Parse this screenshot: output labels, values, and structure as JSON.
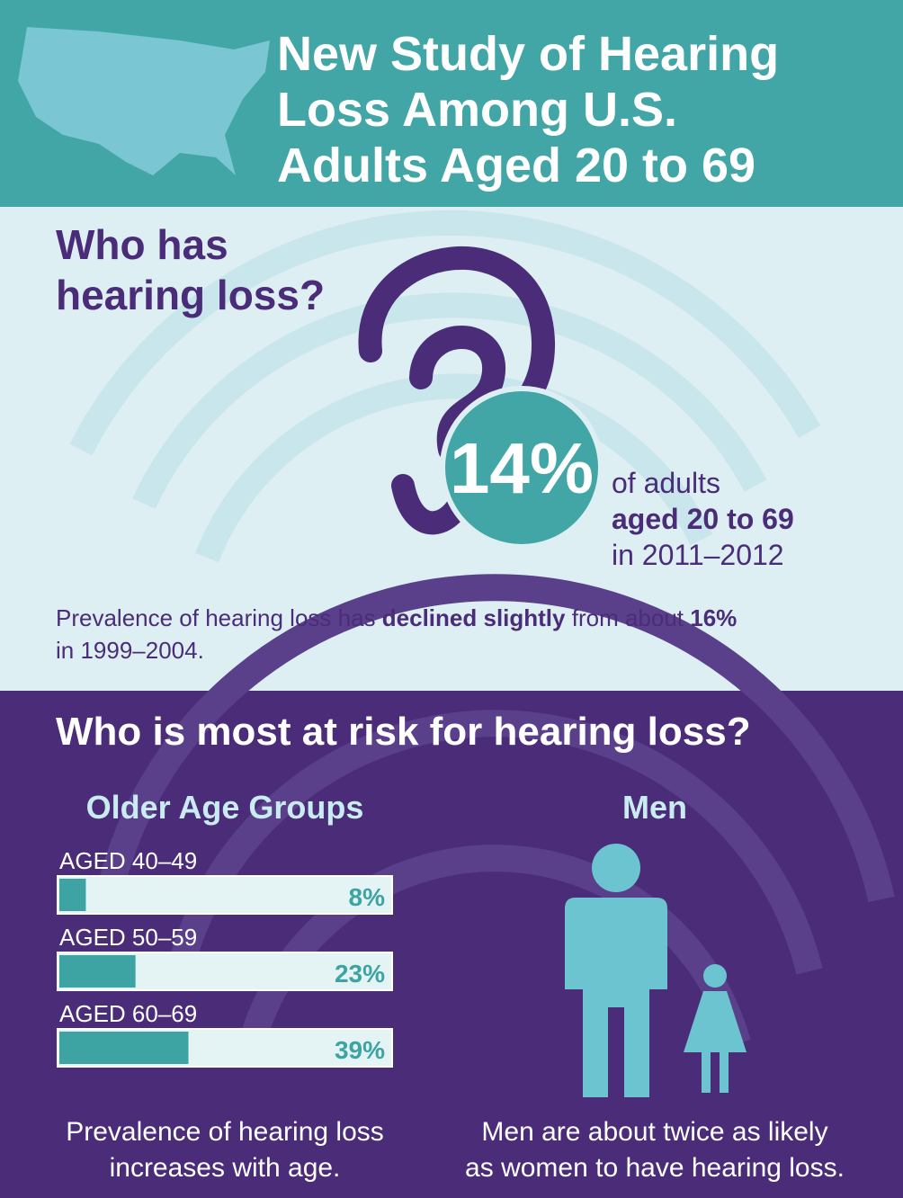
{
  "header": {
    "title_lines": [
      "New Study of Hearing",
      "Loss Among U.S.",
      "Adults Aged 20 to 69"
    ]
  },
  "who_has": {
    "heading_lines": [
      "Who has",
      "hearing loss?"
    ],
    "stat": "14%",
    "stat_caption": [
      "of adults",
      "aged 20 to 69",
      "in 2011–2012"
    ],
    "note": [
      "Prevalence of hearing loss has ",
      "declined slightly",
      " from about ",
      "16%",
      "in 1999–2004."
    ]
  },
  "risk": {
    "heading": "Who is most at risk for hearing loss?",
    "men_heading": "Men",
    "age_caption": [
      "Prevalence of hearing loss",
      "increases with age."
    ],
    "men_caption": [
      "Men are about twice as likely",
      "as women to have hearing loss."
    ]
  },
  "chart_data": {
    "type": "bar",
    "title": "Older Age Groups",
    "categories": [
      "AGED 40–49",
      "AGED 50–59",
      "AGED 60–69"
    ],
    "values": [
      8,
      23,
      39
    ],
    "value_labels": [
      "8%",
      "23%",
      "39%"
    ],
    "xlim": [
      0,
      100
    ],
    "color": "#3ea3a3"
  }
}
